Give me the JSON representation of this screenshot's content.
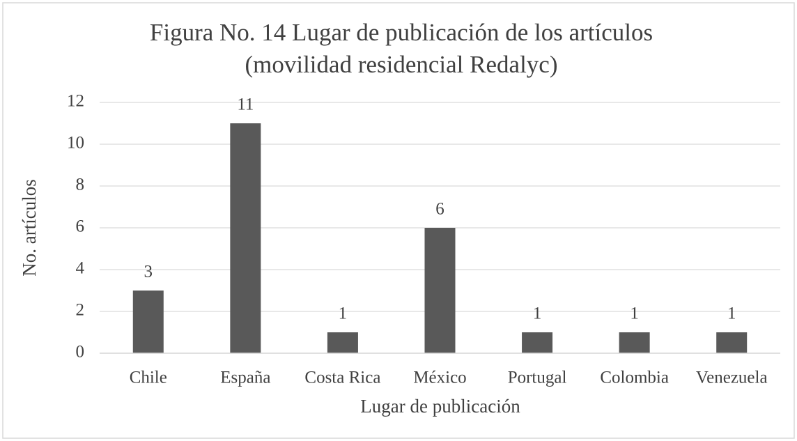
{
  "chart_data": {
    "type": "bar",
    "title": [
      "Figura No. 14 Lugar de publicación de los artículos",
      "(movilidad residencial Redalyc)"
    ],
    "x_label": "Lugar de publicación",
    "y_label": "No. artículos",
    "categories": [
      "Chile",
      "España",
      "Costa Rica",
      "México",
      "Portugal",
      "Colombia",
      "Venezuela"
    ],
    "values": [
      3,
      11,
      1,
      6,
      1,
      1,
      1
    ],
    "color": "#595959",
    "ylim": [
      0,
      12
    ],
    "yticks": [
      0,
      2,
      4,
      6,
      8,
      10,
      12
    ],
    "grid": true,
    "data_labels": true
  }
}
